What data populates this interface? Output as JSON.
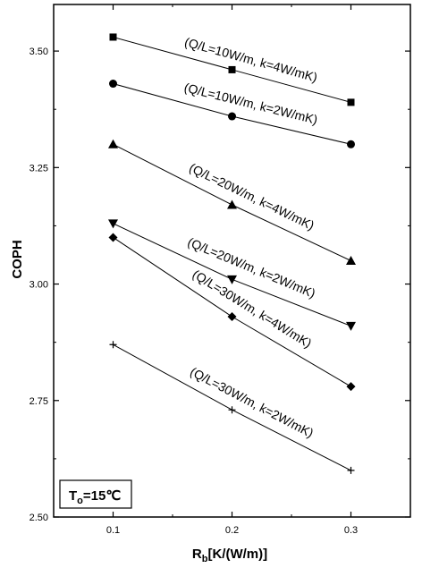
{
  "chart_data": {
    "type": "line",
    "xlabel": "R",
    "xlabel_sub": "b",
    "xlabel_rest": "[K/(W/m)]",
    "ylabel": "COPH",
    "x": [
      0.1,
      0.2,
      0.3
    ],
    "x_ticks": [
      "0.1",
      "0.2",
      "0.3"
    ],
    "xlim": [
      0.05,
      0.35
    ],
    "ylim": [
      2.5,
      3.6
    ],
    "y_ticks": [
      "2.50",
      "2.75",
      "3.00",
      "3.25",
      "3.50"
    ],
    "y_tick_values": [
      2.5,
      2.75,
      3.0,
      3.25,
      3.5
    ],
    "grid": false,
    "series": [
      {
        "name": "(Q/L=10W/m, k=4W/mK)",
        "marker": "square",
        "values": [
          3.53,
          3.46,
          3.39
        ]
      },
      {
        "name": "(Q/L=10W/m, k=2W/mK)",
        "marker": "circle",
        "values": [
          3.43,
          3.36,
          3.3
        ]
      },
      {
        "name": "(Q/L=20W/m, k=4W/mK)",
        "marker": "triangle-up",
        "values": [
          3.3,
          3.17,
          3.05
        ]
      },
      {
        "name": "(Q/L=20W/m, k=2W/mK)",
        "marker": "triangle-down",
        "values": [
          3.13,
          3.01,
          2.91
        ]
      },
      {
        "name": "(Q/L=30W/m, k=4W/mK)",
        "marker": "diamond",
        "values": [
          3.1,
          2.93,
          2.78
        ]
      },
      {
        "name": "(Q/L=30W/m, k=2W/mK)",
        "marker": "plus",
        "values": [
          2.87,
          2.73,
          2.6
        ]
      }
    ],
    "annotation": {
      "main": "T",
      "sub": "o",
      "rest": "=15℃"
    }
  }
}
